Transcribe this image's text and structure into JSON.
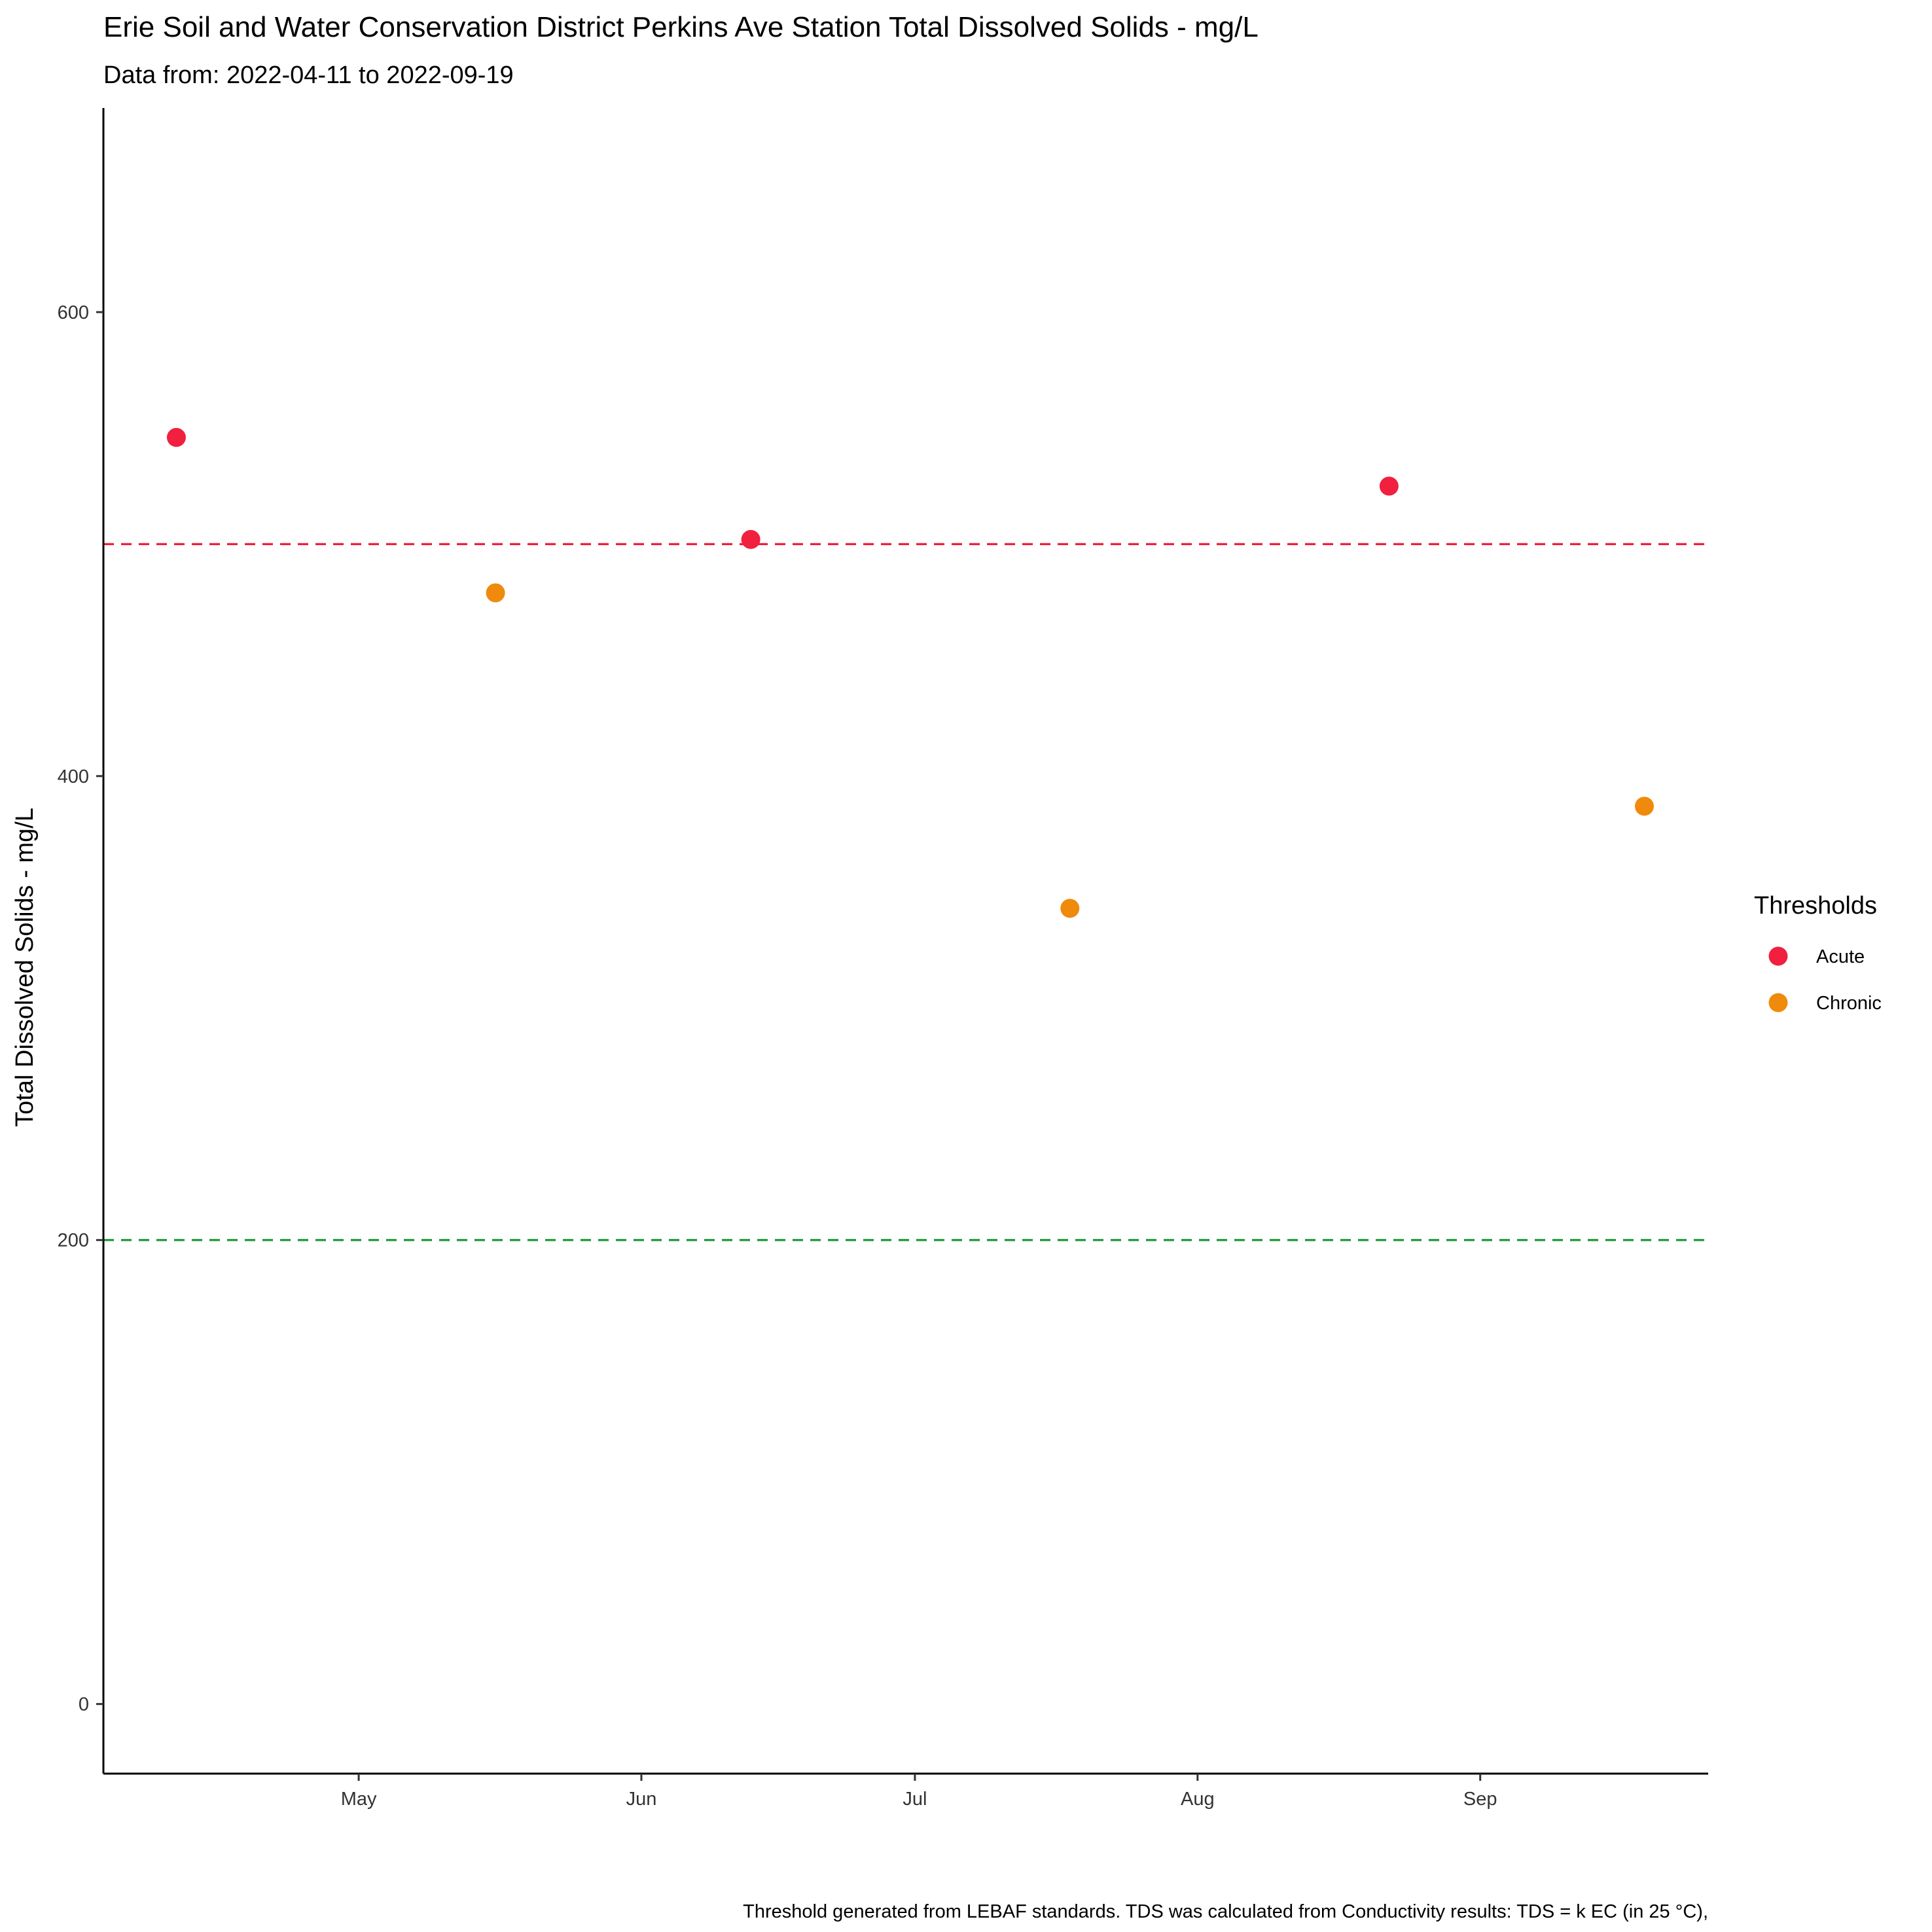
{
  "chart_data": {
    "type": "scatter",
    "title": "Erie Soil and Water Conservation District Perkins Ave Station Total Dissolved Solids - mg/L",
    "subtitle": "Data from: 2022-04-11 to 2022-09-19",
    "xlabel": "",
    "ylabel": "Total Dissolved Solids - mg/L",
    "caption": "Threshold generated from LEBAF standards. TDS was calculated from Conductivity results: TDS = k EC (in 25 °C),",
    "x_ticks": [
      {
        "date": "2022-05-01",
        "label": "May"
      },
      {
        "date": "2022-06-01",
        "label": "Jun"
      },
      {
        "date": "2022-07-01",
        "label": "Jul"
      },
      {
        "date": "2022-08-01",
        "label": "Aug"
      },
      {
        "date": "2022-09-01",
        "label": "Sep"
      }
    ],
    "y_ticks": [
      0,
      200,
      400,
      600
    ],
    "xlim": [
      "2022-04-03",
      "2022-09-26"
    ],
    "ylim": [
      -30,
      688
    ],
    "grid": false,
    "legend": {
      "title": "Thresholds",
      "position": "right",
      "entries": [
        {
          "label": "Acute",
          "color": "#F0203E"
        },
        {
          "label": "Chronic",
          "color": "#F08A0C"
        }
      ]
    },
    "reference_lines": [
      {
        "y": 500,
        "color": "#F0203E",
        "style": "dashed"
      },
      {
        "y": 200,
        "color": "#1E9A3A",
        "style": "dashed"
      }
    ],
    "points": [
      {
        "x": "2022-04-11",
        "y": 546,
        "series": "Acute"
      },
      {
        "x": "2022-05-16",
        "y": 479,
        "series": "Chronic"
      },
      {
        "x": "2022-06-13",
        "y": 502,
        "series": "Acute"
      },
      {
        "x": "2022-07-18",
        "y": 343,
        "series": "Chronic"
      },
      {
        "x": "2022-08-22",
        "y": 525,
        "series": "Acute"
      },
      {
        "x": "2022-09-19",
        "y": 387,
        "series": "Chronic"
      }
    ]
  }
}
